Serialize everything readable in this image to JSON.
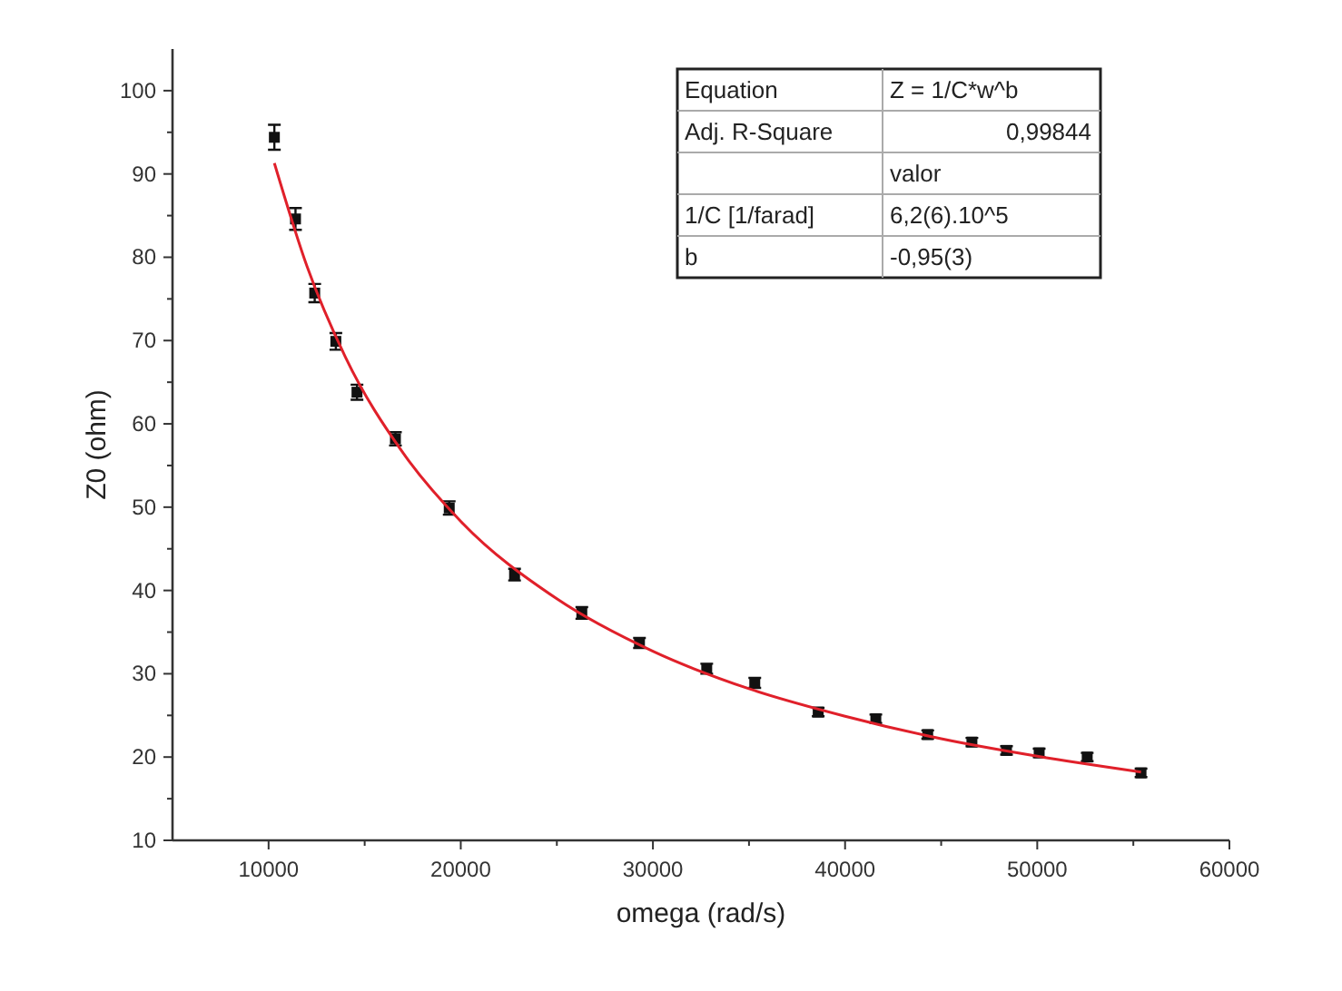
{
  "chart_data": {
    "type": "scatter",
    "xlabel": "omega (rad/s)",
    "ylabel": "Z0 (ohm)",
    "xlim": [
      5000,
      60000
    ],
    "xticks": [
      10000,
      {
        "value": 15000,
        "label": null
      },
      20000,
      {
        "value": 25000,
        "label": null
      },
      30000,
      {
        "value": 35000,
        "label": null
      },
      40000,
      {
        "value": 45000,
        "label": null
      },
      50000,
      {
        "value": 55000,
        "label": null
      },
      60000
    ],
    "ylim": [
      10,
      105
    ],
    "yticks": [
      10,
      {
        "value": 15,
        "label": null
      },
      20,
      {
        "value": 25,
        "label": null
      },
      30,
      {
        "value": 35,
        "label": null
      },
      40,
      {
        "value": 45,
        "label": null
      },
      50,
      {
        "value": 55,
        "label": null
      },
      60,
      {
        "value": 65,
        "label": null
      },
      70,
      {
        "value": 75,
        "label": null
      },
      80,
      {
        "value": 85,
        "label": null
      },
      90,
      {
        "value": 95,
        "label": null
      },
      100
    ],
    "grid": false,
    "series": [
      {
        "color": "#111111",
        "marker": "square",
        "x": [
          10300,
          11400,
          12400,
          13500,
          14600,
          16600,
          19400,
          22800,
          26300,
          29300,
          32800,
          35300,
          38600,
          41600,
          44300,
          46600,
          48400,
          50100,
          52600,
          55400
        ],
        "values": [
          94.4,
          84.6,
          75.7,
          69.9,
          63.8,
          58.2,
          49.9,
          41.9,
          37.3,
          33.7,
          30.6,
          28.9,
          25.4,
          24.6,
          22.7,
          21.8,
          20.8,
          20.5,
          20.0,
          18.1
        ],
        "errors": [
          1.5,
          1.3,
          1.1,
          1,
          0.9,
          0.8,
          0.8,
          0.7,
          0.7,
          0.6,
          0.6,
          0.6,
          0.5,
          0.5,
          0.5,
          0.5,
          0.5,
          0.5,
          0.5,
          0.5
        ]
      },
      {
        "type": "line",
        "color": "#e0202a",
        "marker": "none",
        "line_style": "solid",
        "x": [
          10300,
          12000,
          14000,
          17000,
          20000,
          25000,
          30000,
          35000,
          40000,
          45000,
          50000,
          55400
        ],
        "values": [
          91.3,
          78.9,
          68.0,
          56.5,
          48.3,
          39.0,
          32.7,
          28.2,
          24.9,
          22.2,
          20.1,
          18.2
        ]
      }
    ],
    "annotations": [
      "Equation",
      "Z = 1/C*w^b",
      "Adj. R-Square",
      "0,99844",
      "valor",
      "1/C [1/farad]",
      "6,2(6).10^5",
      "b",
      "-0,95(3)"
    ]
  }
}
